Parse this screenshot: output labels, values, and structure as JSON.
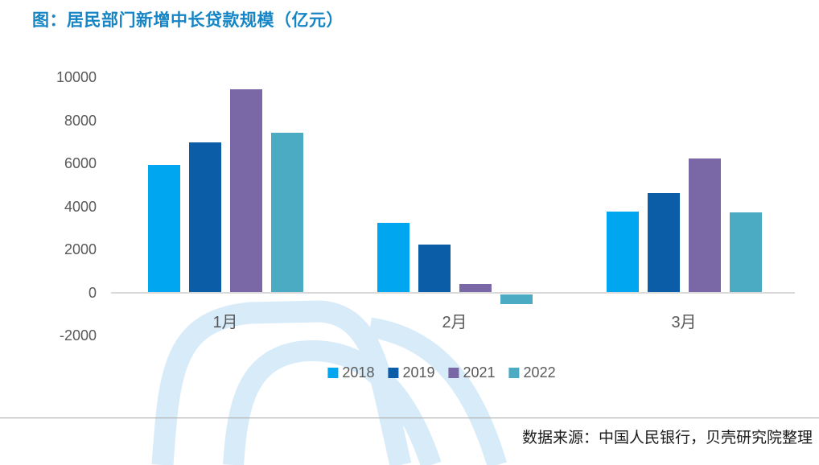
{
  "title": "图：居民部门新增中长贷款规模（亿元）",
  "source_note": "数据来源：中国人民银行，贝壳研究院整理",
  "colors": {
    "title_text": "#1585C5",
    "axis_text": "#595959",
    "baseline": "#D9D9D9",
    "divider": "#A6A6A6",
    "source_text": "#1A1A1A",
    "watermark": "#D7EBF9"
  },
  "chart_data": {
    "type": "bar",
    "title": "图：居民部门新增中长贷款规模（亿元）",
    "categories": [
      "1月",
      "2月",
      "3月"
    ],
    "series": [
      {
        "name": "2018",
        "color": "#00A7F0",
        "values": [
          5910,
          3220,
          3770
        ]
      },
      {
        "name": "2019",
        "color": "#0B5DA8",
        "values": [
          6969,
          2226,
          4605
        ]
      },
      {
        "name": "2021",
        "color": "#7A68A6",
        "values": [
          9448,
          400,
          6239
        ]
      },
      {
        "name": "2022",
        "color": "#4AABC2",
        "values": [
          7424,
          -459,
          3735
        ]
      }
    ],
    "yticks": [
      10000,
      8000,
      6000,
      4000,
      2000,
      0,
      -2000
    ],
    "ylim": [
      -2000,
      10000
    ],
    "grid": false,
    "legend_position": "bottom"
  }
}
